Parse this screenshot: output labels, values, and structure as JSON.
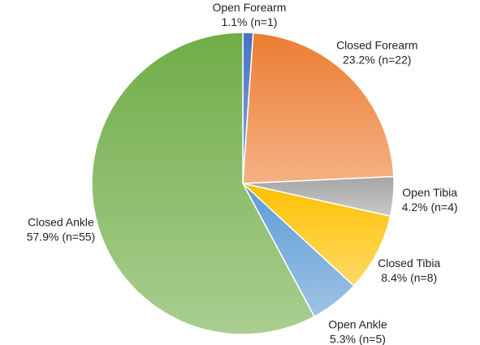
{
  "chart_data": {
    "type": "pie",
    "categories": [
      "Open Forearm",
      "Closed Forearm",
      "Open Tibia",
      "Closed Tibia",
      "Open Ankle",
      "Closed Ankle"
    ],
    "values": [
      1.1,
      23.2,
      4.2,
      8.4,
      5.3,
      57.9
    ],
    "value_labels": [
      "1.1% (n=1)",
      "23.2% (n=22)",
      "4.2% (n=4)",
      "8.4% (n=8)",
      "5.3% (n=5)",
      "57.9% (n=55)"
    ],
    "colors": [
      "#4472c4",
      "#ed7d31",
      "#a5a5a5",
      "#ffc000",
      "#5b9bd5",
      "#70ad47"
    ]
  }
}
